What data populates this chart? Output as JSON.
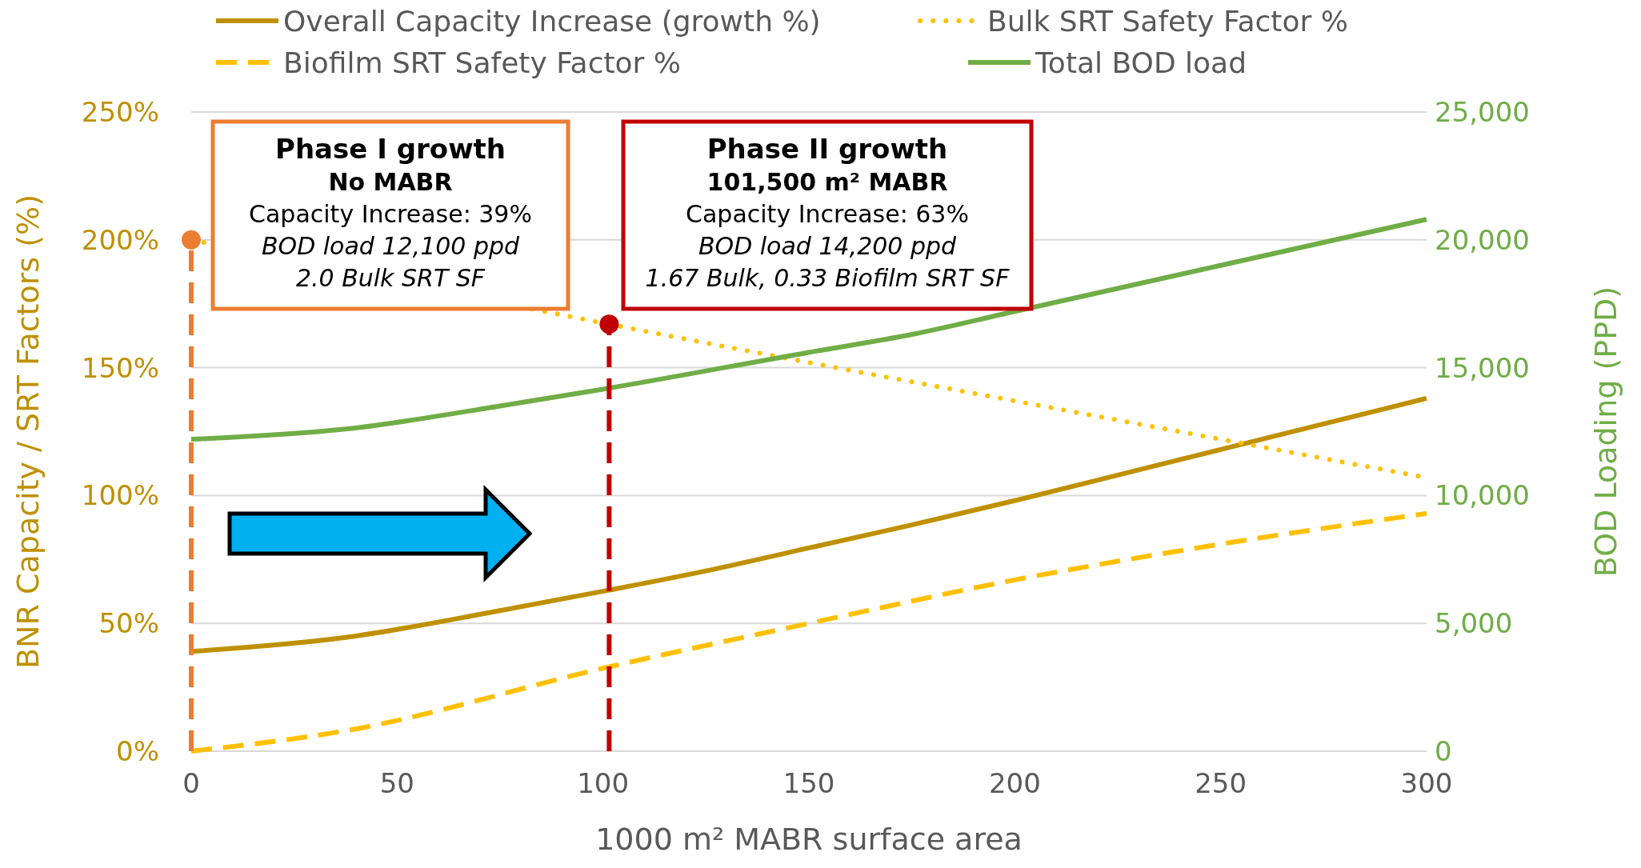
{
  "chart_data": {
    "type": "line",
    "xlabel": "1000 m² MABR surface area",
    "ylabel": "BNR Capacity / SRT Factors (%)",
    "y2label": "BOD Loading (PPD)",
    "xlim": [
      0,
      300
    ],
    "xticks": [
      0,
      50,
      100,
      150,
      200,
      250,
      300
    ],
    "ylim": [
      0,
      250
    ],
    "yticks": [
      {
        "value": 0,
        "label": "0%"
      },
      {
        "value": 50,
        "label": "50%"
      },
      {
        "value": 100,
        "label": "100%"
      },
      {
        "value": 150,
        "label": "150%"
      },
      {
        "value": 200,
        "label": "200%"
      },
      {
        "value": 250,
        "label": "250%"
      }
    ],
    "y2lim": [
      0,
      25000
    ],
    "y2ticks": [
      0,
      {
        "value": 5000,
        "label": "5,000"
      },
      {
        "value": 10000,
        "label": "10,000"
      },
      {
        "value": 15000,
        "label": "15,000"
      },
      {
        "value": 20000,
        "label": "20,000"
      },
      {
        "value": 25000,
        "label": "25,000"
      }
    ],
    "grid": "y",
    "legend": "top",
    "series": [
      {
        "name": "Overall Capacity Increase (growth %)",
        "color": "#bf9000",
        "line_style": "solid",
        "x": [
          0,
          37.5,
          75,
          101.5,
          125,
          150,
          175,
          200,
          225,
          250,
          275,
          300
        ],
        "values": [
          39,
          44.5,
          55,
          63,
          70.5,
          79.5,
          88.5,
          98,
          108,
          118,
          128,
          138
        ]
      },
      {
        "name": "Bulk SRT Safety Factor %",
        "color": "#ffc000",
        "line_style": "dotted",
        "x": [
          0,
          101.5,
          150,
          200,
          250,
          300
        ],
        "values": [
          200,
          167,
          152,
          137,
          122,
          107
        ]
      },
      {
        "name": "Biofilm SRT Safety Factor %",
        "color": "#ffc000",
        "line_style": "dashed",
        "x": [
          0,
          37.5,
          101.5,
          150,
          200,
          250,
          300
        ],
        "values": [
          0,
          8,
          33,
          50,
          67,
          81,
          93
        ]
      },
      {
        "name": "Total BOD load",
        "color": "#70ad47",
        "line_style": "solid",
        "axis": "y2",
        "x": [
          0,
          37.5,
          75,
          101.5,
          150,
          175,
          200,
          250,
          300
        ],
        "values": [
          12200,
          12600,
          13500,
          14200,
          15600,
          16300,
          17200,
          19000,
          20800
        ]
      },
      {
        "type": "lollipop",
        "color": "#ed7d31",
        "line_style": "dashed",
        "marker": "circle",
        "x": [
          0
        ],
        "values": [
          200
        ]
      },
      {
        "type": "lollipop",
        "color": "#c00000",
        "line_style": "dashed",
        "marker": "circle",
        "x": [
          101.5
        ],
        "values": [
          167
        ]
      }
    ],
    "annotations": [
      "Phase I growth\nNo MABR\nCapacity Increase: 39%\nBOD load 12,100 ppd\n2.0 Bulk SRT SF",
      "Phase II growth\n101,500 m² MABR\nCapacity Increase: 63%\nBOD load 14,200 ppd\n1.67 Bulk, 0.33 Biofilm SRT SF"
    ]
  }
}
